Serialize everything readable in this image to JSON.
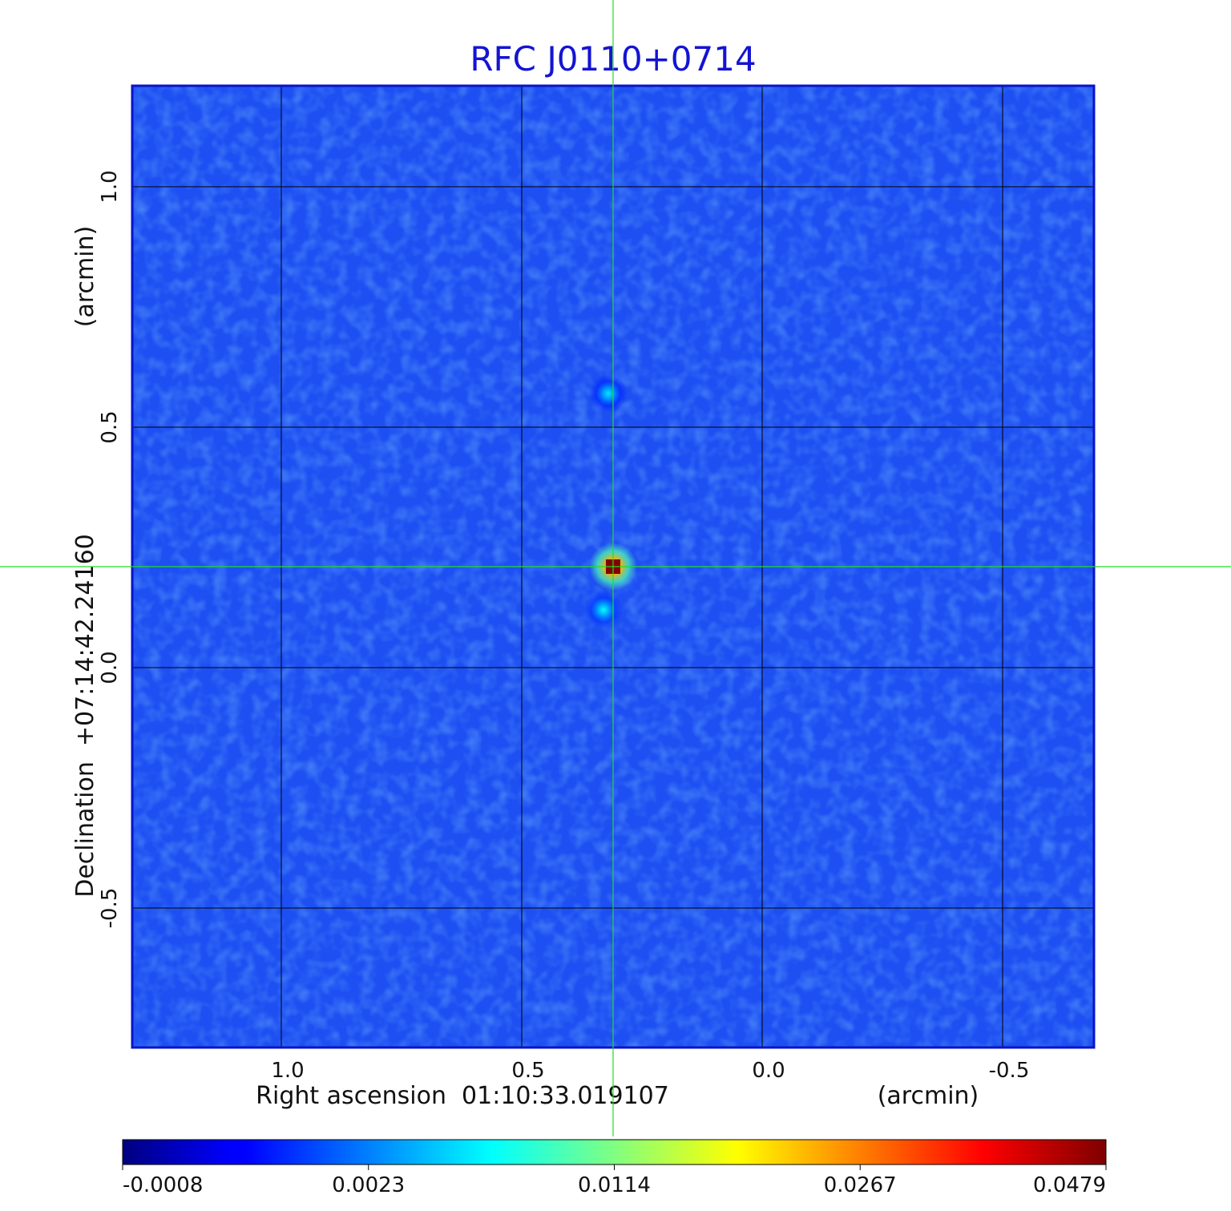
{
  "chart_data": {
    "type": "image",
    "title": "RFC J0110+0714",
    "xlabel": "Right ascension  01:10:33.019107",
    "xunit": "(arcmin)",
    "ylabel": "Declination  +07:14:42.24160",
    "yunit": "(arcmin)",
    "xlim": [
      1.31,
      -0.69
    ],
    "ylim": [
      -0.79,
      1.21
    ],
    "xticks": [
      {
        "value": 1,
        "label": "1.0"
      },
      0.5,
      {
        "value": 0,
        "label": "0.0"
      },
      -0.5
    ],
    "yticks": [
      {
        "value": 1,
        "label": "1.0"
      },
      0.5,
      {
        "value": 0,
        "label": "0.0"
      },
      -0.5
    ],
    "grid": true,
    "crosshair": true,
    "colormap": "jet",
    "color_scale": "piecewise",
    "clim": [
      -0.0008,
      0.0479
    ],
    "cticks": [
      -0.0008,
      0.0023,
      0.0114,
      0.0267,
      0.0479
    ],
    "sources": [
      {
        "x": 0.31,
        "y": 0.21,
        "value": 0.0479
      },
      {
        "x": 0.32,
        "y": 0.57,
        "value": 0.006
      },
      {
        "x": 0.33,
        "y": 0.12,
        "value": 0.007
      }
    ]
  }
}
